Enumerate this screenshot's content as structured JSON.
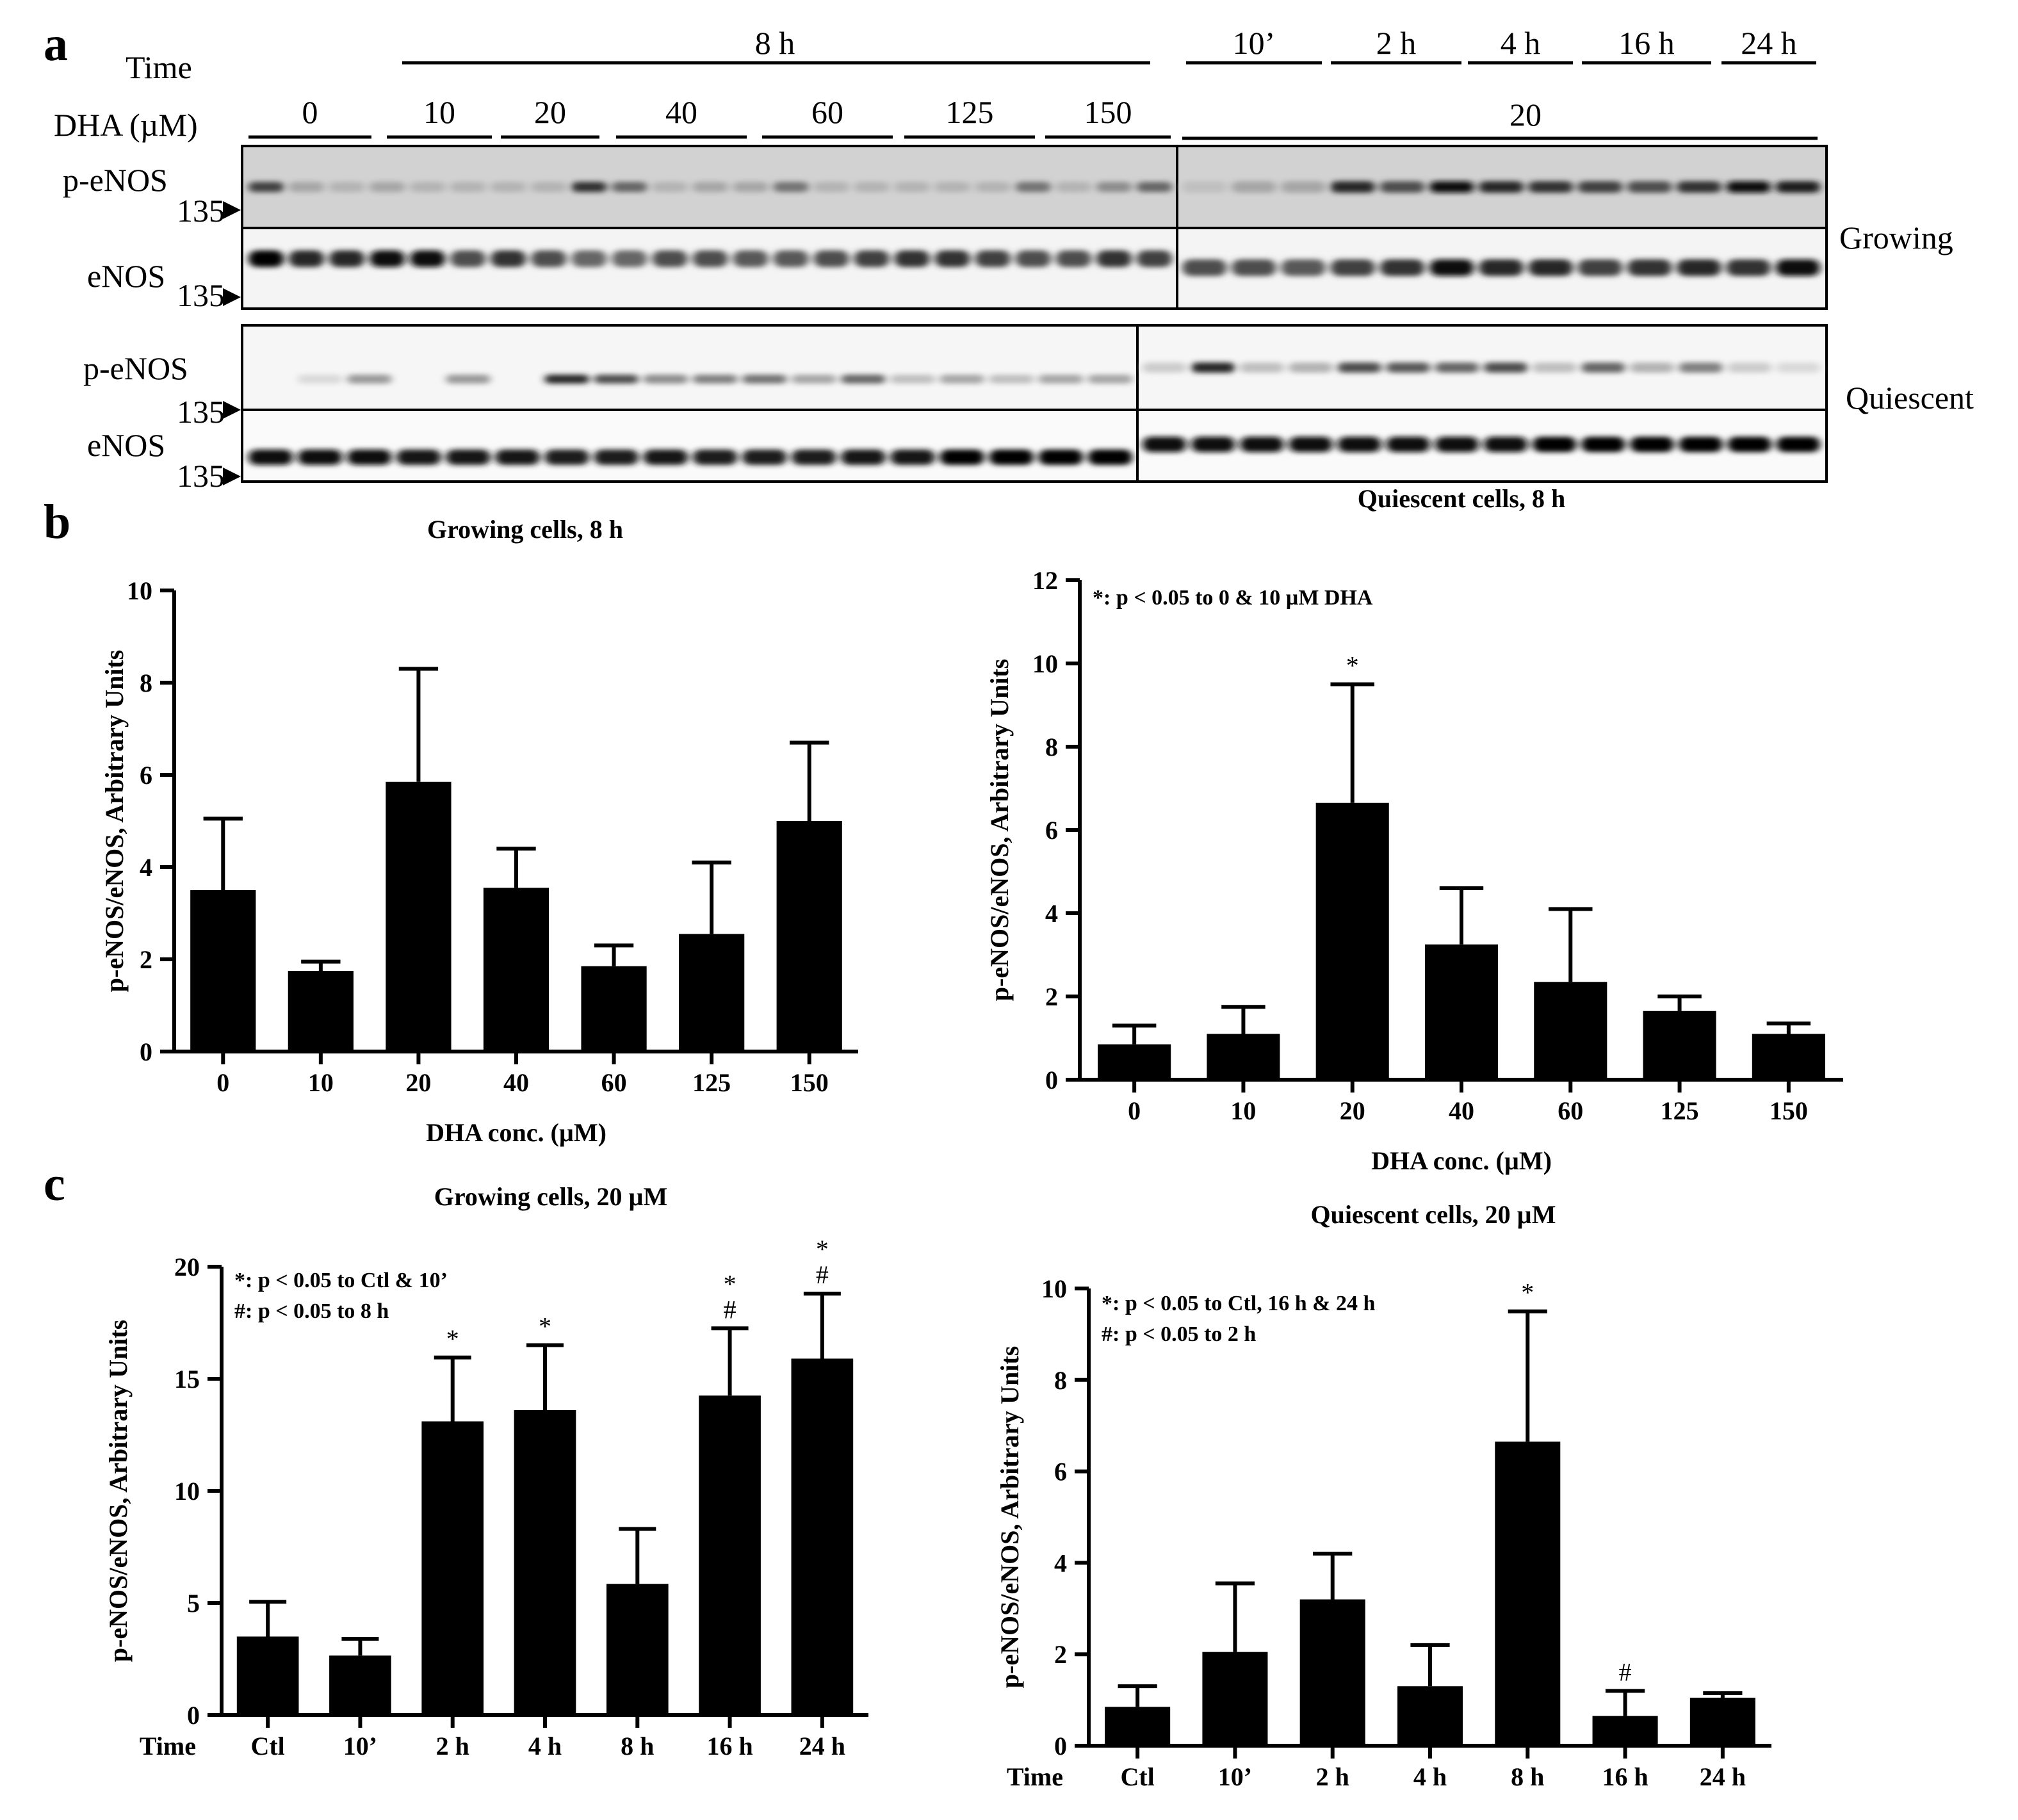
{
  "panels": {
    "a": "a",
    "b": "b",
    "c": "c"
  },
  "blot": {
    "time_label": "Time",
    "dha_label": "DHA (µM)",
    "time_8h": "8 h",
    "time_groups": [
      "10’",
      "2 h",
      "4 h",
      "16 h",
      "24 h"
    ],
    "dha_groups": [
      "0",
      "10",
      "20",
      "40",
      "60",
      "125",
      "150"
    ],
    "dha_right": "20",
    "rows": [
      "p-eNOS",
      "eNOS",
      "p-eNOS",
      "eNOS"
    ],
    "marker": "135",
    "growing": "Growing",
    "quiescent": "Quiescent"
  },
  "chart_data": [
    {
      "id": "b-growing",
      "type": "bar",
      "title": "Growing cells, 8 h",
      "xlabel": "DHA conc. (µM)",
      "ylabel": "p-eNOS/eNOS, Arbitrary Units",
      "ylim": [
        0,
        10
      ],
      "yticks": [
        0,
        2,
        4,
        6,
        8,
        10
      ],
      "categories": [
        "0",
        "10",
        "20",
        "40",
        "60",
        "125",
        "150"
      ],
      "values": [
        3.5,
        1.75,
        5.85,
        3.55,
        1.85,
        2.55,
        5.0
      ],
      "errors": [
        1.55,
        0.2,
        2.45,
        0.85,
        0.45,
        1.55,
        1.7
      ],
      "marks": [
        "",
        "",
        "",
        "",
        "",
        "",
        ""
      ],
      "marks2": [
        "",
        "",
        "",
        "",
        "",
        "",
        ""
      ],
      "annotations": []
    },
    {
      "id": "b-quiescent",
      "type": "bar",
      "title": "Quiescent cells, 8 h",
      "xlabel": "DHA conc. (µM)",
      "ylabel": "p-eNOS/eNOS, Arbitrary Units",
      "ylim": [
        0,
        12
      ],
      "yticks": [
        0,
        2,
        4,
        6,
        8,
        10,
        12
      ],
      "categories": [
        "0",
        "10",
        "20",
        "40",
        "60",
        "125",
        "150"
      ],
      "values": [
        0.85,
        1.1,
        6.65,
        3.25,
        2.35,
        1.65,
        1.1
      ],
      "errors": [
        0.45,
        0.65,
        2.85,
        1.35,
        1.75,
        0.35,
        0.25
      ],
      "marks": [
        "",
        "",
        "*",
        "",
        "",
        "",
        ""
      ],
      "marks2": [
        "",
        "",
        "",
        "",
        "",
        "",
        ""
      ],
      "annotations": [
        "*: p < 0.05 to 0 & 10 µM DHA"
      ]
    },
    {
      "id": "c-growing",
      "type": "bar",
      "title": "Growing cells, 20 µM",
      "xlabel": "Time",
      "ylabel": "p-eNOS/eNOS, Arbitrary Units",
      "ylim": [
        0,
        20
      ],
      "yticks": [
        0,
        5,
        10,
        15,
        20
      ],
      "categories": [
        "Ctl",
        "10’",
        "2 h",
        "4 h",
        "8 h",
        "16 h",
        "24 h"
      ],
      "values": [
        3.5,
        2.65,
        13.1,
        13.6,
        5.85,
        14.25,
        15.9
      ],
      "errors": [
        1.55,
        0.75,
        2.85,
        2.9,
        2.45,
        3.0,
        2.9
      ],
      "marks": [
        "",
        "",
        "*",
        "*",
        "",
        "#",
        "#"
      ],
      "marks2": [
        "",
        "",
        "",
        "",
        "",
        "*",
        "*"
      ],
      "annotations": [
        "*: p < 0.05 to Ctl & 10’",
        "#: p < 0.05 to 8 h"
      ]
    },
    {
      "id": "c-quiescent",
      "type": "bar",
      "title": "Quiescent cells, 20 µM",
      "xlabel": "Time",
      "ylabel": "p-eNOS/eNOS, Arbitrary Units",
      "ylim": [
        0,
        10
      ],
      "yticks": [
        0,
        2,
        4,
        6,
        8,
        10
      ],
      "categories": [
        "Ctl",
        "10’",
        "2 h",
        "4 h",
        "8 h",
        "16 h",
        "24 h"
      ],
      "values": [
        0.85,
        2.05,
        3.2,
        1.3,
        6.65,
        0.65,
        1.05
      ],
      "errors": [
        0.45,
        1.5,
        1.0,
        0.9,
        2.85,
        0.55,
        0.1
      ],
      "marks": [
        "",
        "",
        "",
        "",
        "*",
        "#",
        ""
      ],
      "marks2": [
        "",
        "",
        "",
        "",
        "",
        "",
        ""
      ],
      "annotations": [
        "*: p < 0.05 to Ctl, 16 h & 24 h",
        "#: p < 0.05 to 2 h"
      ]
    }
  ]
}
